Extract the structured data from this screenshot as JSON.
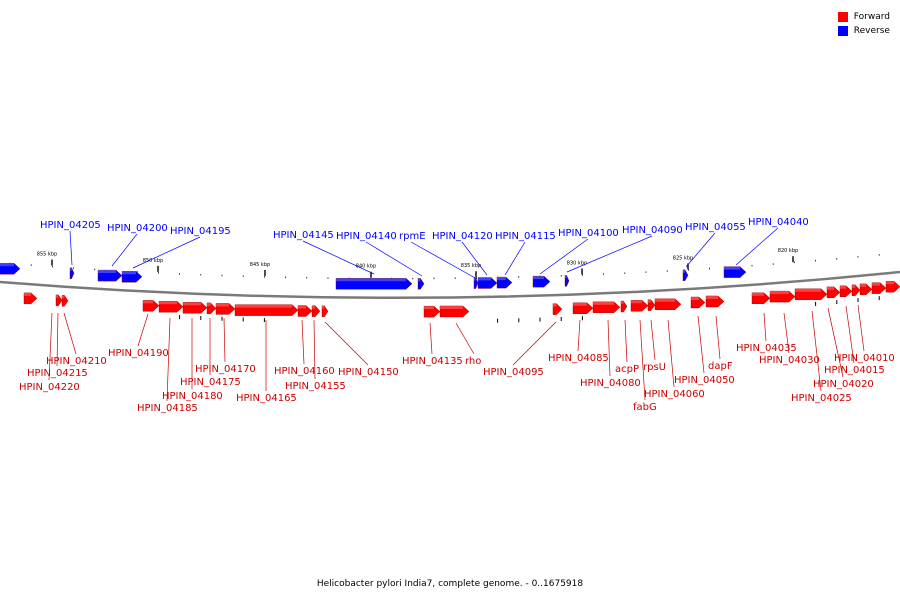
{
  "legend": {
    "forward_label": "Forward",
    "reverse_label": "Reverse",
    "forward_color": "#ff0000",
    "reverse_color": "#0000ff"
  },
  "caption": "Helicobacter pylori India7, complete genome. - 0..1675918",
  "scale_labels": [
    "855 kbp",
    "850 kbp",
    "845 kbp",
    "840 kbp",
    "835 kbp",
    "830 kbp",
    "825 kbp",
    "820 kbp"
  ],
  "reverse_genes": [
    "HPIN_04205",
    "HPIN_04200",
    "HPIN_04195",
    "HPIN_04145",
    "HPIN_04140",
    "rpmE",
    "HPIN_04120",
    "HPIN_04115",
    "HPIN_04100",
    "HPIN_04090",
    "HPIN_04055",
    "HPIN_04040"
  ],
  "forward_genes": [
    "HPIN_04210",
    "HPIN_04215",
    "HPIN_04220",
    "HPIN_04190",
    "HPIN_04185",
    "HPIN_04180",
    "HPIN_04175",
    "HPIN_04170",
    "HPIN_04165",
    "HPIN_04160",
    "HPIN_04155",
    "HPIN_04150",
    "HPIN_04135",
    "rho",
    "HPIN_04095",
    "HPIN_04085",
    "HPIN_04080",
    "acpP",
    "fabG",
    "rpsU",
    "HPIN_04060",
    "HPIN_04050",
    "dapF",
    "HPIN_04035",
    "HPIN_04030",
    "HPIN_04025",
    "HPIN_04020",
    "HPIN_04015",
    "HPIN_04010"
  ]
}
